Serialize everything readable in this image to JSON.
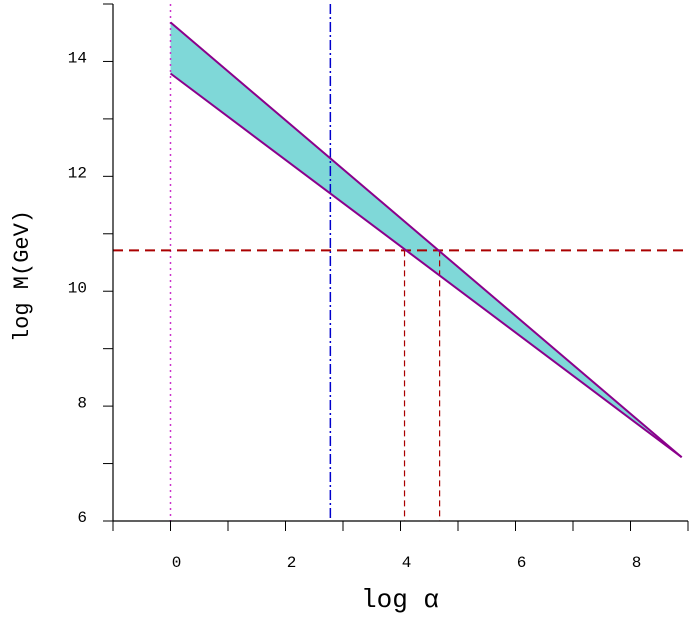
{
  "chart_data": {
    "type": "band",
    "xlabel": "log α",
    "ylabel": "log M(GeV)",
    "xlim": [
      -1,
      9
    ],
    "ylim": [
      6,
      15
    ],
    "xticks": [
      0,
      2,
      4,
      6,
      8
    ],
    "yticks": [
      6,
      8,
      10,
      12,
      14
    ],
    "xminor_ticks": [
      -1,
      1,
      3,
      5,
      7,
      9
    ],
    "yminor_ticks": [
      7,
      9,
      11,
      13,
      15
    ],
    "series": [
      {
        "color": "#8b008b",
        "x": [
          0,
          8.89
        ],
        "values": [
          14.68,
          7.11
        ]
      },
      {
        "color": "#8b008b",
        "x": [
          0,
          8.89
        ],
        "values": [
          13.79,
          7.11
        ]
      }
    ],
    "fill_color": "#7fd8d8",
    "vlines": [
      {
        "x": 0,
        "color": "#cc33cc",
        "style": "dotted"
      },
      {
        "x": 2.78,
        "color": "#0000cc",
        "style": "dashdot"
      }
    ],
    "hlines": [
      {
        "y": 10.71,
        "color": "#aa0000",
        "style": "dashed"
      }
    ],
    "drop_lines": [
      {
        "x": 4.07,
        "color": "#aa0000",
        "style": "dashed"
      },
      {
        "x": 4.68,
        "color": "#aa0000",
        "style": "dashed"
      }
    ]
  }
}
